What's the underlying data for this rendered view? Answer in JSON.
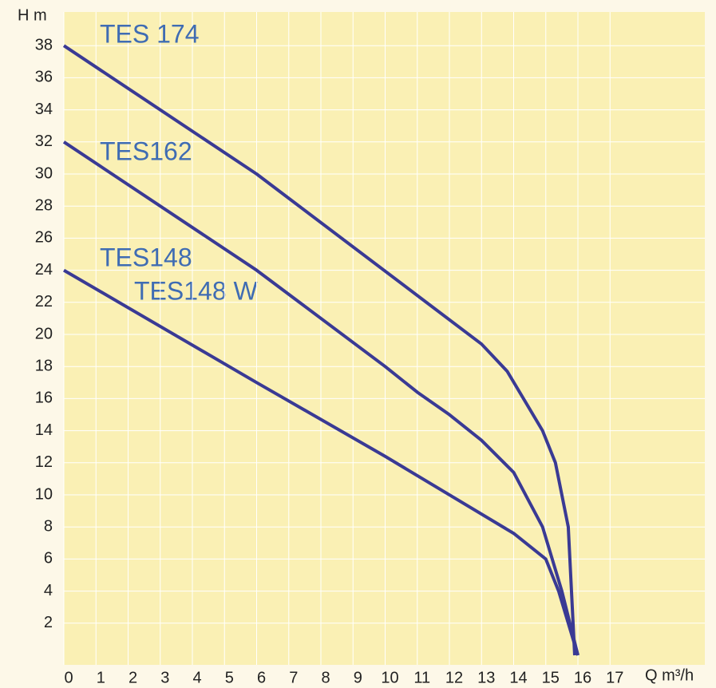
{
  "chart_data": {
    "type": "line",
    "y_label": "H m",
    "x_label": "Q m³/h",
    "xlim": [
      0,
      20
    ],
    "ylim": [
      0,
      40
    ],
    "xticks": [
      0,
      1,
      2,
      3,
      4,
      5,
      6,
      7,
      8,
      9,
      10,
      11,
      12,
      13,
      14,
      15,
      16,
      17
    ],
    "yticks": [
      2,
      4,
      6,
      8,
      10,
      12,
      14,
      16,
      18,
      20,
      22,
      24,
      26,
      28,
      30,
      32,
      34,
      36,
      38
    ],
    "grid": true,
    "series": [
      {
        "name": "TES 174",
        "color": "#3a3a94",
        "x": [
          0,
          6,
          13,
          13.8,
          14.9,
          15.3,
          15.7,
          15.9
        ],
        "values": [
          38,
          30,
          19.4,
          17.7,
          14,
          12,
          8,
          0
        ]
      },
      {
        "name": "TES162",
        "color": "#3a3a94",
        "x": [
          0,
          6,
          10,
          11,
          12,
          13,
          14,
          14.9,
          15.5,
          16
        ],
        "values": [
          32,
          24,
          18,
          16.4,
          15,
          13.4,
          11.4,
          8,
          4,
          0
        ]
      },
      {
        "name": "TES148",
        "color": "#3a3a94",
        "x": [
          0,
          6,
          10,
          14,
          15,
          15.4,
          16
        ],
        "values": [
          24,
          17,
          12.4,
          7.6,
          6,
          4,
          0
        ]
      }
    ],
    "annotations": [
      "TES148 W"
    ]
  }
}
